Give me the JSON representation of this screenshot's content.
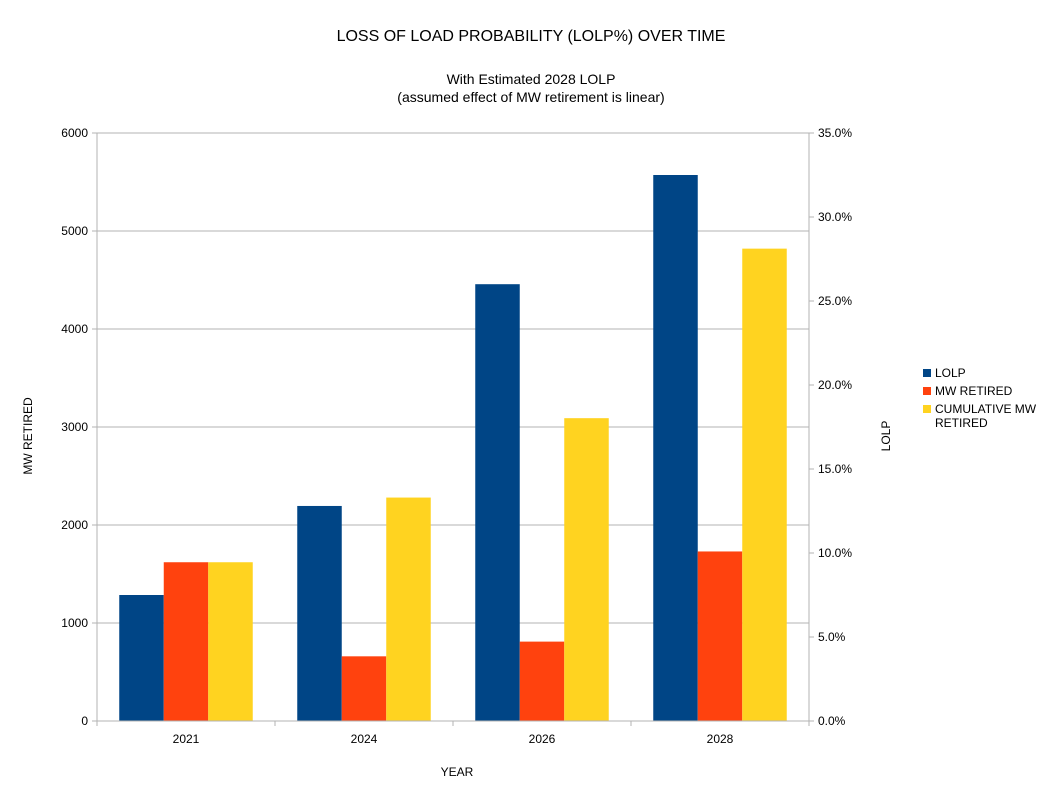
{
  "chart_data": {
    "type": "bar",
    "title": "LOSS OF LOAD PROBABILITY (LOLP%) OVER TIME",
    "subtitle_lines": [
      "With Estimated 2028 LOLP",
      "(assumed effect of MW retirement is linear)"
    ],
    "xlabel": "YEAR",
    "ylabel": "MW RETIRED",
    "y2label": "LOLP",
    "categories": [
      "2021",
      "2024",
      "2026",
      "2028"
    ],
    "ylim": [
      0,
      6000
    ],
    "yticks": [
      "0",
      "1000",
      "2000",
      "3000",
      "4000",
      "5000",
      "6000"
    ],
    "y2lim": [
      0,
      0.35
    ],
    "y2ticks": [
      "0.0%",
      "5.0%",
      "10.0%",
      "15.0%",
      "20.0%",
      "25.0%",
      "30.0%",
      "35.0%"
    ],
    "grid": true,
    "legend_position": "right",
    "series": [
      {
        "name": "LOLP",
        "axis": "right",
        "color": "#004586",
        "values": [
          0.075,
          0.128,
          0.26,
          0.325
        ]
      },
      {
        "name": "MW RETIRED",
        "axis": "left",
        "color": "#ff420e",
        "values": [
          1620,
          660,
          810,
          1730
        ]
      },
      {
        "name": "CUMULATIVE MW RETIRED",
        "legend_lines": [
          "CUMULATIVE MW",
          "RETIRED"
        ],
        "axis": "left",
        "color": "#ffd320",
        "values": [
          1620,
          2280,
          3090,
          4820
        ]
      }
    ]
  }
}
